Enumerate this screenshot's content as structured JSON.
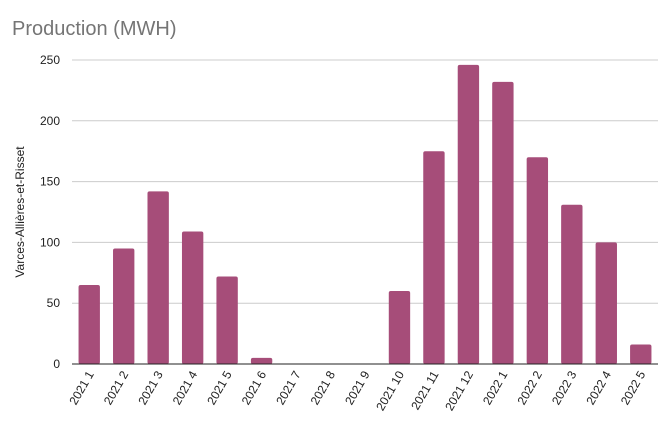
{
  "chart_data": {
    "type": "bar",
    "title": "Production (MWH)",
    "xlabel": "",
    "ylabel": "Varces-Allières-et-Risset",
    "categories": [
      "2021 1",
      "2021 2",
      "2021 3",
      "2021 4",
      "2021 5",
      "2021 6",
      "2021 7",
      "2021 8",
      "2021 9",
      "2021 10",
      "2021 11",
      "2021 12",
      "2022 1",
      "2022 2",
      "2022 3",
      "2022 4",
      "2022 5"
    ],
    "values": [
      65,
      95,
      142,
      109,
      72,
      5,
      0,
      0,
      0,
      60,
      175,
      246,
      232,
      170,
      131,
      100,
      16
    ],
    "ylim": [
      0,
      250
    ],
    "yticks": [
      0,
      50,
      100,
      150,
      200,
      250
    ],
    "grid": true,
    "legend": "none",
    "colors": {
      "bar": "#a64d79",
      "grid": "#cccccc",
      "axis": "#222222"
    }
  }
}
